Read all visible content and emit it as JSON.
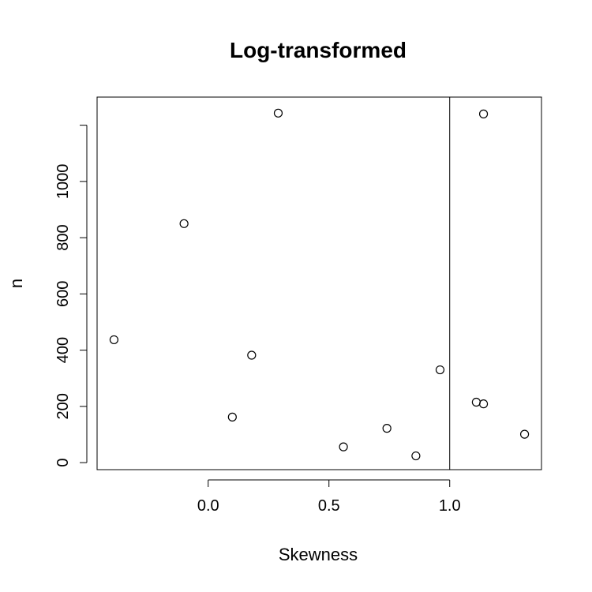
{
  "chart_data": {
    "type": "scatter",
    "title": "Log-transformed",
    "xlabel": "Skewness",
    "ylabel": "n",
    "xlim": [
      -0.46,
      1.38
    ],
    "ylim": [
      -25,
      1300
    ],
    "x_ticks": [
      0.0,
      0.5,
      1.0
    ],
    "x_tick_labels": [
      "0.0",
      "0.5",
      "1.0"
    ],
    "y_ticks": [
      0,
      200,
      400,
      600,
      800,
      1000
    ],
    "y_tick_labels": [
      "0",
      "200",
      "400",
      "600",
      "800",
      "1000"
    ],
    "y_extra_tick": 1200,
    "vline_x": 1.0,
    "grid": false,
    "points": [
      {
        "x": -0.39,
        "y": 437
      },
      {
        "x": -0.1,
        "y": 850
      },
      {
        "x": 0.1,
        "y": 162
      },
      {
        "x": 0.18,
        "y": 382
      },
      {
        "x": 0.29,
        "y": 1243
      },
      {
        "x": 0.56,
        "y": 56
      },
      {
        "x": 0.74,
        "y": 122
      },
      {
        "x": 0.86,
        "y": 24
      },
      {
        "x": 0.96,
        "y": 330
      },
      {
        "x": 1.11,
        "y": 215
      },
      {
        "x": 1.14,
        "y": 209
      },
      {
        "x": 1.14,
        "y": 1240
      },
      {
        "x": 1.31,
        "y": 101
      }
    ]
  }
}
